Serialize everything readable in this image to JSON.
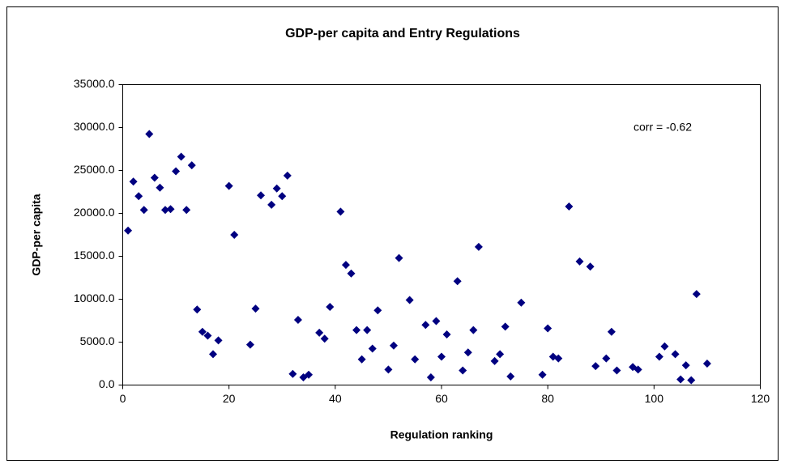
{
  "chart_data": {
    "type": "scatter",
    "title": "GDP-per capita and Entry Regulations",
    "x_label": "Regulation ranking",
    "y_label": "GDP-per capita",
    "annotation": "corr = -0.62",
    "color": "#000080",
    "x": [
      1,
      2,
      3,
      4,
      5,
      6,
      7,
      8,
      9,
      10,
      11,
      12,
      13,
      14,
      15,
      16,
      17,
      18,
      20,
      21,
      24,
      25,
      26,
      28,
      29,
      30,
      31,
      32,
      33,
      34,
      35,
      37,
      38,
      39,
      41,
      42,
      43,
      44,
      45,
      46,
      47,
      48,
      50,
      51,
      52,
      54,
      55,
      57,
      58,
      59,
      60,
      61,
      63,
      64,
      65,
      66,
      67,
      70,
      71,
      72,
      73,
      75,
      79,
      80,
      81,
      82,
      84,
      86,
      88,
      89,
      91,
      92,
      93,
      96,
      97,
      101,
      102,
      104,
      105,
      106,
      107,
      108,
      110
    ],
    "values": [
      18000,
      23700,
      22000,
      20400,
      29250,
      24150,
      23000,
      20400,
      20500,
      24900,
      26600,
      20400,
      25600,
      8800,
      6200,
      5750,
      3600,
      5200,
      23200,
      17500,
      4700,
      8900,
      22100,
      21000,
      22900,
      22000,
      24400,
      1300,
      7600,
      900,
      1200,
      6100,
      5400,
      9100,
      20200,
      14000,
      13000,
      6400,
      3000,
      6400,
      4250,
      8700,
      1800,
      4600,
      14800,
      9900,
      3000,
      7000,
      900,
      7450,
      3300,
      5900,
      12100,
      1700,
      3800,
      6400,
      16100,
      2800,
      3600,
      6800,
      1000,
      9600,
      1200,
      6600,
      3300,
      3100,
      20800,
      14400,
      13800,
      2200,
      3100,
      6200,
      1700,
      2100,
      1800,
      3300,
      4500,
      3600,
      660,
      2300,
      570,
      10600,
      2500
    ],
    "xlim": [
      0,
      120
    ],
    "xticks": [
      0,
      20,
      40,
      60,
      80,
      100,
      120
    ],
    "ylim": [
      0,
      35000
    ],
    "yticks": [
      {
        "value": 0,
        "label": "0.0"
      },
      {
        "value": 5000,
        "label": "5000.0"
      },
      {
        "value": 10000,
        "label": "10000.0"
      },
      {
        "value": 15000,
        "label": "15000.0"
      },
      {
        "value": 20000,
        "label": "20000.0"
      },
      {
        "value": 25000,
        "label": "25000.0"
      },
      {
        "value": 30000,
        "label": "30000.0"
      },
      {
        "value": 35000,
        "label": "35000.0"
      }
    ]
  }
}
